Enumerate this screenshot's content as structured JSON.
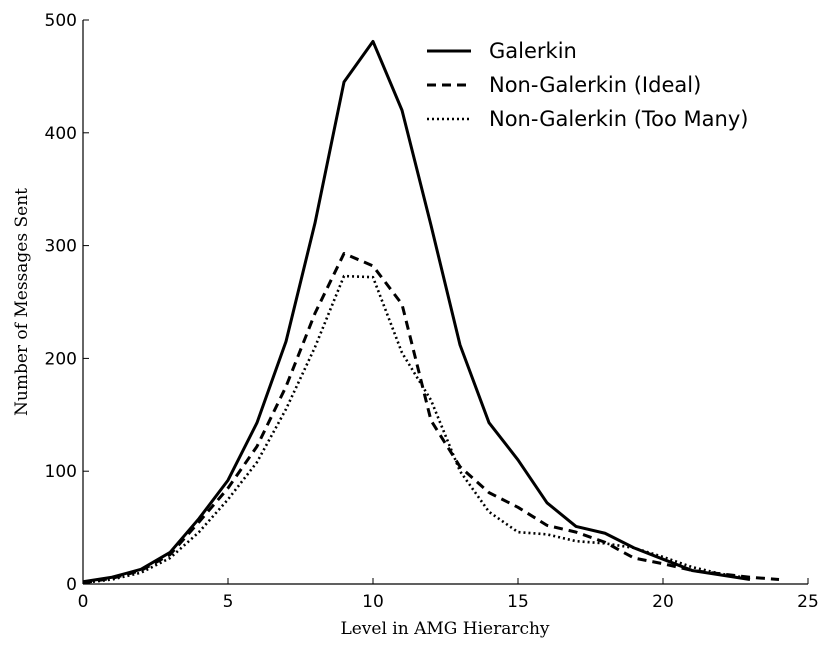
{
  "chart_data": {
    "type": "line",
    "title": "",
    "xlabel": "Level in AMG Hierarchy",
    "ylabel": "Number of Messages Sent",
    "xlim": [
      0,
      25
    ],
    "ylim": [
      0,
      500
    ],
    "xticks": [
      0,
      5,
      10,
      15,
      20,
      25
    ],
    "yticks": [
      0,
      100,
      200,
      300,
      400,
      500
    ],
    "grid": false,
    "legend_position": "top-right",
    "series": [
      {
        "name": "Galerkin",
        "style": "solid",
        "x": [
          0,
          1,
          2,
          3,
          4,
          5,
          6,
          7,
          8,
          9,
          10,
          11,
          12,
          13,
          14,
          15,
          16,
          17,
          18,
          19,
          20,
          21,
          22,
          23
        ],
        "values": [
          2,
          6,
          13,
          28,
          58,
          92,
          143,
          215,
          320,
          445,
          481,
          420,
          318,
          212,
          143,
          110,
          72,
          51,
          45,
          32,
          22,
          12,
          8,
          4
        ]
      },
      {
        "name": "Non-Galerkin (Ideal)",
        "style": "dashed",
        "x": [
          0,
          1,
          2,
          3,
          4,
          5,
          6,
          7,
          8,
          9,
          10,
          11,
          12,
          13,
          14,
          15,
          16,
          17,
          18,
          19,
          20,
          21,
          22,
          23,
          24
        ],
        "values": [
          1,
          5,
          12,
          26,
          55,
          85,
          122,
          175,
          240,
          293,
          282,
          248,
          145,
          104,
          81,
          68,
          52,
          46,
          37,
          23,
          18,
          12,
          9,
          6,
          4
        ]
      },
      {
        "name": "Non-Galerkin (Too Many)",
        "style": "dotted",
        "x": [
          0,
          1,
          2,
          3,
          4,
          5,
          6,
          7,
          8,
          9,
          10,
          11,
          12,
          13,
          14,
          15,
          16,
          17,
          18,
          19,
          20,
          21,
          22,
          23
        ],
        "values": [
          1,
          4,
          10,
          23,
          46,
          75,
          108,
          155,
          210,
          273,
          272,
          205,
          163,
          100,
          64,
          46,
          44,
          38,
          36,
          32,
          24,
          15,
          9,
          5
        ]
      }
    ]
  }
}
